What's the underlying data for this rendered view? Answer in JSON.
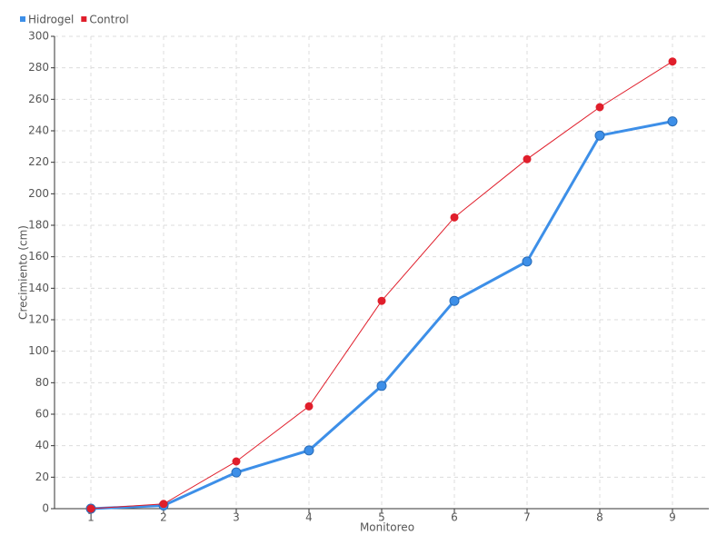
{
  "chart_data": {
    "type": "line",
    "x_label": "Monitoreo",
    "y_label": "Crecimiento (cm)",
    "categories": [
      "1",
      "2",
      "3",
      "4",
      "5",
      "6",
      "7",
      "8",
      "9"
    ],
    "series": [
      {
        "name": "Hidrogel",
        "color": "#3d8fe8",
        "values": [
          0,
          2,
          23,
          37,
          78,
          132,
          157,
          237,
          246
        ]
      },
      {
        "name": "Control",
        "color": "#e01e2b",
        "values": [
          0,
          3,
          30,
          65,
          132,
          185,
          222,
          255,
          284
        ]
      }
    ],
    "ylim": [
      0,
      300
    ],
    "yticks": [
      0,
      20,
      40,
      60,
      80,
      100,
      120,
      140,
      160,
      180,
      200,
      220,
      240,
      260,
      280,
      300
    ],
    "grid": true,
    "legend": "top-left"
  }
}
